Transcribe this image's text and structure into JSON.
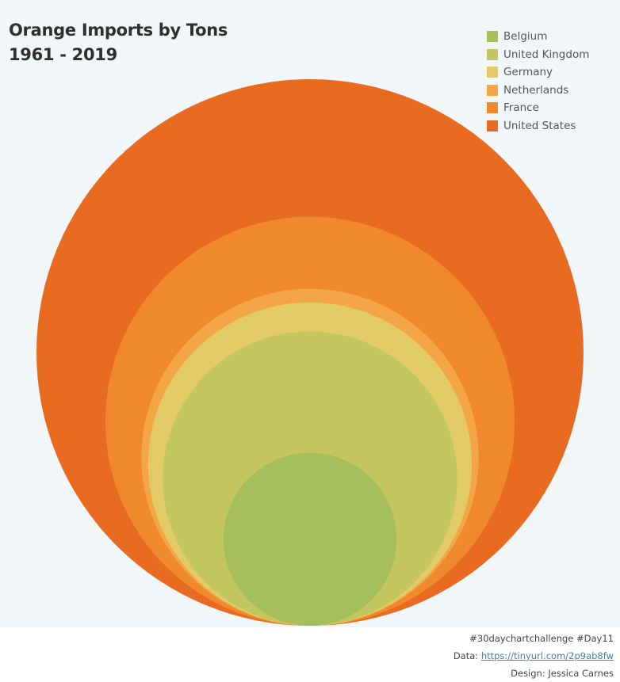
{
  "title_line1": "Orange Imports by Tons",
  "title_line2": "1961 - 2019",
  "chart_data": {
    "type": "nested-bubble",
    "title": "Orange Imports by Tons 1961 - 2019",
    "legend_position": "top-right",
    "series": [
      {
        "name": "Belgium",
        "color": "#a6be5c"
      },
      {
        "name": "United Kingdom",
        "color": "#c4c75f"
      },
      {
        "name": "Germany",
        "color": "#e2cb66"
      },
      {
        "name": "Netherlands",
        "color": "#f4a647"
      },
      {
        "name": "France",
        "color": "#f0882e"
      },
      {
        "name": "United States",
        "color": "#e96b21"
      }
    ],
    "relative_size": {
      "United States": 1.0,
      "France": 0.56,
      "Netherlands": 0.38,
      "Germany": 0.35,
      "United Kingdom": 0.29,
      "Belgium": 0.1
    }
  },
  "credits": {
    "hashtag": "#30daychartchallenge #Day11",
    "data_label": "Data: ",
    "data_link": "https://tinyurl.com/2p9ab8fw",
    "design": "Design: Jessica Carnes"
  }
}
